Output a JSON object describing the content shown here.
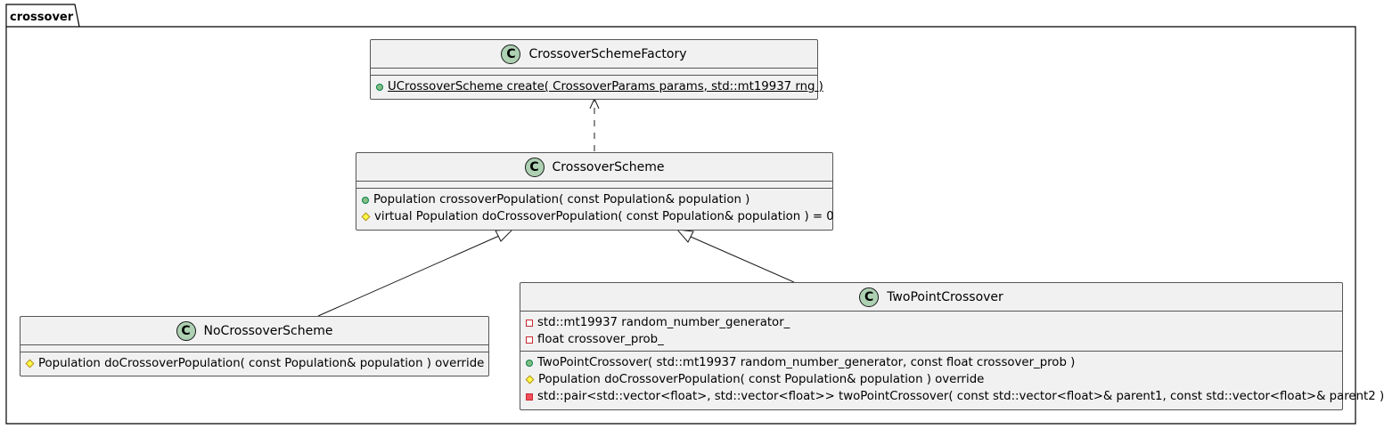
{
  "package": {
    "name": "crossover"
  },
  "classes": {
    "factory": {
      "name": "CrossoverSchemeFactory",
      "icon": "C",
      "fields": [],
      "methods": [
        {
          "visibility": "public",
          "static": true,
          "text": "UCrossoverScheme create( CrossoverParams params, std::mt19937 rng )"
        }
      ]
    },
    "scheme": {
      "name": "CrossoverScheme",
      "icon": "C",
      "fields": [],
      "methods": [
        {
          "visibility": "public",
          "text": "Population crossoverPopulation( const Population& population )"
        },
        {
          "visibility": "protected",
          "text": "virtual Population doCrossoverPopulation( const Population& population ) = 0"
        }
      ]
    },
    "none": {
      "name": "NoCrossoverScheme",
      "icon": "C",
      "fields": [],
      "methods": [
        {
          "visibility": "protected",
          "text": "Population doCrossoverPopulation( const Population& population ) override"
        }
      ]
    },
    "twopoint": {
      "name": "TwoPointCrossover",
      "icon": "C",
      "fields": [
        {
          "visibility": "private",
          "text": "std::mt19937 random_number_generator_"
        },
        {
          "visibility": "private",
          "text": "float crossover_prob_"
        }
      ],
      "methods": [
        {
          "visibility": "public",
          "text": "TwoPointCrossover( std::mt19937 random_number_generator, const float crossover_prob )"
        },
        {
          "visibility": "protected",
          "text": "Population doCrossoverPopulation( const Population& population ) override"
        },
        {
          "visibility": "private",
          "text": "std::pair<std::vector<float>, std::vector<float>> twoPointCrossover( const std::vector<float>& parent1, const std::vector<float>& parent2 )"
        }
      ]
    }
  },
  "relations": [
    {
      "from": "scheme",
      "to": "factory",
      "type": "dependency"
    },
    {
      "from": "none",
      "to": "scheme",
      "type": "inheritance"
    },
    {
      "from": "twopoint",
      "to": "scheme",
      "type": "inheritance"
    }
  ],
  "colors": {
    "class_fill": "#f1f1f1",
    "border": "#555555",
    "class_icon": "#add1b2",
    "public": "#84be84",
    "protected": "#ffff44",
    "private": "#c82930"
  }
}
